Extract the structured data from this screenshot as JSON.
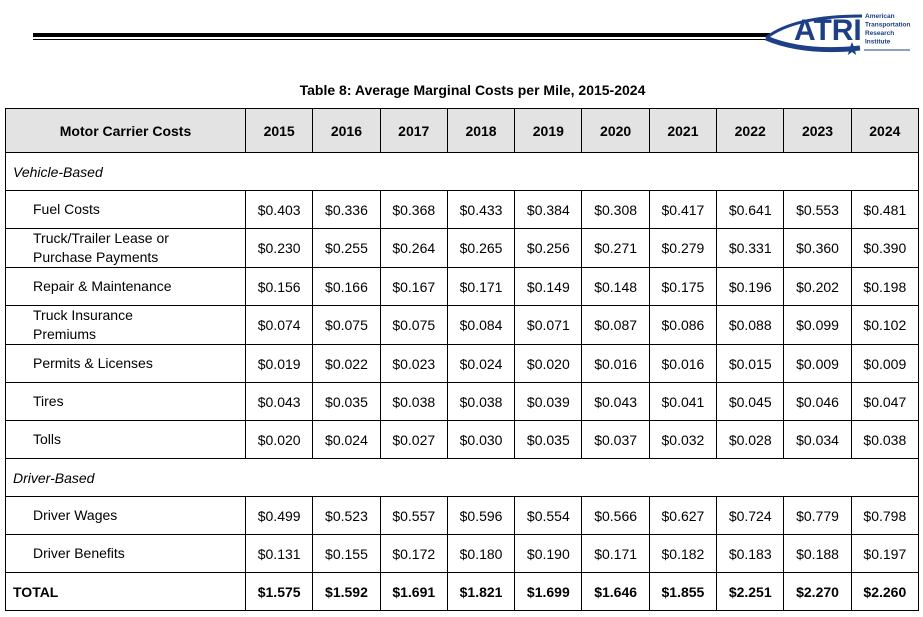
{
  "header": {
    "logo": {
      "name": "ATRI",
      "lines": [
        "American",
        "Transportation",
        "Research",
        "Institute"
      ]
    }
  },
  "table": {
    "title": "Table 8: Average Marginal Costs per Mile, 2015-2024",
    "columns": [
      "Motor Carrier Costs",
      "2015",
      "2016",
      "2017",
      "2018",
      "2019",
      "2020",
      "2021",
      "2022",
      "2023",
      "2024"
    ],
    "sections": [
      {
        "label": "Vehicle-Based",
        "rows": [
          {
            "label": "Fuel Costs",
            "values": [
              "$0.403",
              "$0.336",
              "$0.368",
              "$0.433",
              "$0.384",
              "$0.308",
              "$0.417",
              "$0.641",
              "$0.553",
              "$0.481"
            ]
          },
          {
            "label": "Truck/Trailer Lease or Purchase Payments",
            "values": [
              "$0.230",
              "$0.255",
              "$0.264",
              "$0.265",
              "$0.256",
              "$0.271",
              "$0.279",
              "$0.331",
              "$0.360",
              "$0.390"
            ]
          },
          {
            "label": "Repair & Maintenance",
            "values": [
              "$0.156",
              "$0.166",
              "$0.167",
              "$0.171",
              "$0.149",
              "$0.148",
              "$0.175",
              "$0.196",
              "$0.202",
              "$0.198"
            ]
          },
          {
            "label": "Truck Insurance Premiums",
            "values": [
              "$0.074",
              "$0.075",
              "$0.075",
              "$0.084",
              "$0.071",
              "$0.087",
              "$0.086",
              "$0.088",
              "$0.099",
              "$0.102"
            ]
          },
          {
            "label": "Permits & Licenses",
            "values": [
              "$0.019",
              "$0.022",
              "$0.023",
              "$0.024",
              "$0.020",
              "$0.016",
              "$0.016",
              "$0.015",
              "$0.009",
              "$0.009"
            ]
          },
          {
            "label": "Tires",
            "values": [
              "$0.043",
              "$0.035",
              "$0.038",
              "$0.038",
              "$0.039",
              "$0.043",
              "$0.041",
              "$0.045",
              "$0.046",
              "$0.047"
            ]
          },
          {
            "label": "Tolls",
            "values": [
              "$0.020",
              "$0.024",
              "$0.027",
              "$0.030",
              "$0.035",
              "$0.037",
              "$0.032",
              "$0.028",
              "$0.034",
              "$0.038"
            ]
          }
        ]
      },
      {
        "label": "Driver-Based",
        "rows": [
          {
            "label": "Driver Wages",
            "values": [
              "$0.499",
              "$0.523",
              "$0.557",
              "$0.596",
              "$0.554",
              "$0.566",
              "$0.627",
              "$0.724",
              "$0.779",
              "$0.798"
            ]
          },
          {
            "label": "Driver Benefits",
            "values": [
              "$0.131",
              "$0.155",
              "$0.172",
              "$0.180",
              "$0.190",
              "$0.171",
              "$0.182",
              "$0.183",
              "$0.188",
              "$0.197"
            ]
          }
        ]
      }
    ],
    "total": {
      "label": "TOTAL",
      "values": [
        "$1.575",
        "$1.592",
        "$1.691",
        "$1.821",
        "$1.699",
        "$1.646",
        "$1.855",
        "$2.251",
        "$2.270",
        "$2.260"
      ]
    }
  }
}
